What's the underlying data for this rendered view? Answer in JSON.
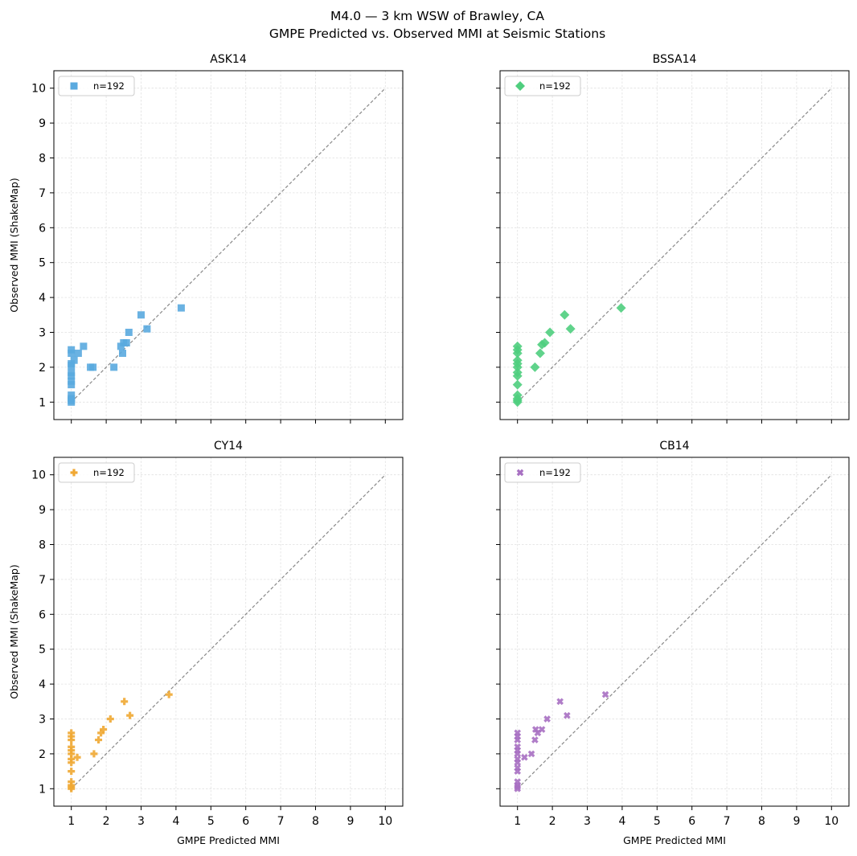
{
  "figure": {
    "title_line1": "M4.0 — 3 km WSW of Brawley, CA",
    "title_line2": "GMPE Predicted vs. Observed MMI at Seismic Stations"
  },
  "chart_data": [
    {
      "type": "scatter",
      "title": "ASK14",
      "xlabel": "",
      "ylabel": "Observed MMI (ShakeMap)",
      "xlim": [
        0.5,
        10.5
      ],
      "ylim": [
        0.5,
        10.5
      ],
      "xticks": [
        "1",
        "2",
        "3",
        "4",
        "5",
        "6",
        "7",
        "8",
        "9",
        "10"
      ],
      "yticks": [
        "1",
        "2",
        "3",
        "4",
        "5",
        "6",
        "7",
        "8",
        "9",
        "10"
      ],
      "show_xticklabels": false,
      "show_yticklabels": true,
      "grid": true,
      "reference_line": {
        "x": [
          1,
          10
        ],
        "y": [
          1,
          10
        ],
        "style": "dashed",
        "color": "#888888"
      },
      "legend": {
        "position": "top-left",
        "label": "n=192"
      },
      "marker": "square",
      "color": "#5aaadf",
      "series": [
        {
          "label": "n=192",
          "points": [
            [
              1.0,
              1.0
            ],
            [
              1.0,
              1.05
            ],
            [
              1.0,
              1.1
            ],
            [
              1.0,
              1.2
            ],
            [
              1.0,
              1.5
            ],
            [
              1.0,
              1.6
            ],
            [
              1.0,
              1.75
            ],
            [
              1.0,
              1.85
            ],
            [
              1.0,
              2.05
            ],
            [
              1.0,
              2.1
            ],
            [
              1.0,
              2.4
            ],
            [
              1.0,
              2.5
            ],
            [
              1.08,
              2.2
            ],
            [
              1.2,
              2.4
            ],
            [
              1.35,
              2.6
            ],
            [
              1.55,
              2.0
            ],
            [
              1.62,
              2.0
            ],
            [
              2.22,
              2.0
            ],
            [
              2.42,
              2.6
            ],
            [
              2.47,
              2.4
            ],
            [
              2.5,
              2.7
            ],
            [
              2.58,
              2.7
            ],
            [
              2.65,
              3.0
            ],
            [
              3.0,
              3.5
            ],
            [
              3.17,
              3.1
            ],
            [
              4.15,
              3.7
            ]
          ]
        }
      ]
    },
    {
      "type": "scatter",
      "title": "BSSA14",
      "xlabel": "",
      "ylabel": "",
      "xlim": [
        0.5,
        10.5
      ],
      "ylim": [
        0.5,
        10.5
      ],
      "xticks": [
        "1",
        "2",
        "3",
        "4",
        "5",
        "6",
        "7",
        "8",
        "9",
        "10"
      ],
      "yticks": [
        "1",
        "2",
        "3",
        "4",
        "5",
        "6",
        "7",
        "8",
        "9",
        "10"
      ],
      "show_xticklabels": false,
      "show_yticklabels": false,
      "grid": true,
      "reference_line": {
        "x": [
          1,
          10
        ],
        "y": [
          1,
          10
        ],
        "style": "dashed",
        "color": "#888888"
      },
      "legend": {
        "position": "top-left",
        "label": "n=192"
      },
      "marker": "diamond",
      "color": "#4fce7e",
      "series": [
        {
          "label": "n=192",
          "points": [
            [
              1.0,
              1.0
            ],
            [
              1.0,
              1.05
            ],
            [
              1.0,
              1.1
            ],
            [
              1.0,
              1.2
            ],
            [
              1.0,
              1.5
            ],
            [
              1.0,
              1.75
            ],
            [
              1.0,
              1.85
            ],
            [
              1.0,
              2.0
            ],
            [
              1.0,
              2.1
            ],
            [
              1.0,
              2.2
            ],
            [
              1.0,
              2.4
            ],
            [
              1.0,
              2.5
            ],
            [
              1.0,
              2.6
            ],
            [
              1.5,
              2.0
            ],
            [
              1.65,
              2.4
            ],
            [
              1.7,
              2.65
            ],
            [
              1.78,
              2.7
            ],
            [
              1.93,
              3.0
            ],
            [
              2.35,
              3.5
            ],
            [
              2.52,
              3.1
            ],
            [
              3.97,
              3.7
            ]
          ]
        }
      ]
    },
    {
      "type": "scatter",
      "title": "CY14",
      "xlabel": "GMPE Predicted MMI",
      "ylabel": "Observed MMI (ShakeMap)",
      "xlim": [
        0.5,
        10.5
      ],
      "ylim": [
        0.5,
        10.5
      ],
      "xticks": [
        "1",
        "2",
        "3",
        "4",
        "5",
        "6",
        "7",
        "8",
        "9",
        "10"
      ],
      "yticks": [
        "1",
        "2",
        "3",
        "4",
        "5",
        "6",
        "7",
        "8",
        "9",
        "10"
      ],
      "show_xticklabels": true,
      "show_yticklabels": true,
      "grid": true,
      "reference_line": {
        "x": [
          1,
          10
        ],
        "y": [
          1,
          10
        ],
        "style": "dashed",
        "color": "#888888"
      },
      "legend": {
        "position": "top-left",
        "label": "n=192"
      },
      "marker": "plus",
      "color": "#f0a833",
      "series": [
        {
          "label": "n=192",
          "points": [
            [
              1.0,
              1.0
            ],
            [
              1.0,
              1.05
            ],
            [
              1.0,
              1.1
            ],
            [
              1.0,
              1.2
            ],
            [
              1.0,
              1.5
            ],
            [
              1.0,
              1.75
            ],
            [
              1.0,
              1.85
            ],
            [
              1.0,
              2.0
            ],
            [
              1.0,
              2.1
            ],
            [
              1.0,
              2.2
            ],
            [
              1.0,
              2.4
            ],
            [
              1.0,
              2.5
            ],
            [
              1.0,
              2.6
            ],
            [
              1.17,
              1.9
            ],
            [
              1.65,
              2.0
            ],
            [
              1.78,
              2.4
            ],
            [
              1.85,
              2.6
            ],
            [
              1.92,
              2.7
            ],
            [
              2.12,
              3.0
            ],
            [
              2.52,
              3.5
            ],
            [
              2.68,
              3.1
            ],
            [
              3.8,
              3.7
            ]
          ]
        }
      ]
    },
    {
      "type": "scatter",
      "title": "CB14",
      "xlabel": "GMPE Predicted MMI",
      "ylabel": "",
      "xlim": [
        0.5,
        10.5
      ],
      "ylim": [
        0.5,
        10.5
      ],
      "xticks": [
        "1",
        "2",
        "3",
        "4",
        "5",
        "6",
        "7",
        "8",
        "9",
        "10"
      ],
      "yticks": [
        "1",
        "2",
        "3",
        "4",
        "5",
        "6",
        "7",
        "8",
        "9",
        "10"
      ],
      "show_xticklabels": true,
      "show_yticklabels": false,
      "grid": true,
      "reference_line": {
        "x": [
          1,
          10
        ],
        "y": [
          1,
          10
        ],
        "style": "dashed",
        "color": "#888888"
      },
      "legend": {
        "position": "top-left",
        "label": "n=192"
      },
      "marker": "x",
      "color": "#a76fc2",
      "series": [
        {
          "label": "n=192",
          "points": [
            [
              1.0,
              1.0
            ],
            [
              1.0,
              1.05
            ],
            [
              1.0,
              1.1
            ],
            [
              1.0,
              1.2
            ],
            [
              1.0,
              1.5
            ],
            [
              1.0,
              1.6
            ],
            [
              1.0,
              1.75
            ],
            [
              1.0,
              1.85
            ],
            [
              1.0,
              2.0
            ],
            [
              1.0,
              2.1
            ],
            [
              1.0,
              2.2
            ],
            [
              1.0,
              2.4
            ],
            [
              1.0,
              2.5
            ],
            [
              1.0,
              2.6
            ],
            [
              1.2,
              1.9
            ],
            [
              1.4,
              2.0
            ],
            [
              1.5,
              2.4
            ],
            [
              1.52,
              2.7
            ],
            [
              1.58,
              2.6
            ],
            [
              1.7,
              2.7
            ],
            [
              1.85,
              3.0
            ],
            [
              2.22,
              3.5
            ],
            [
              2.42,
              3.1
            ],
            [
              3.52,
              3.7
            ]
          ]
        }
      ]
    }
  ]
}
